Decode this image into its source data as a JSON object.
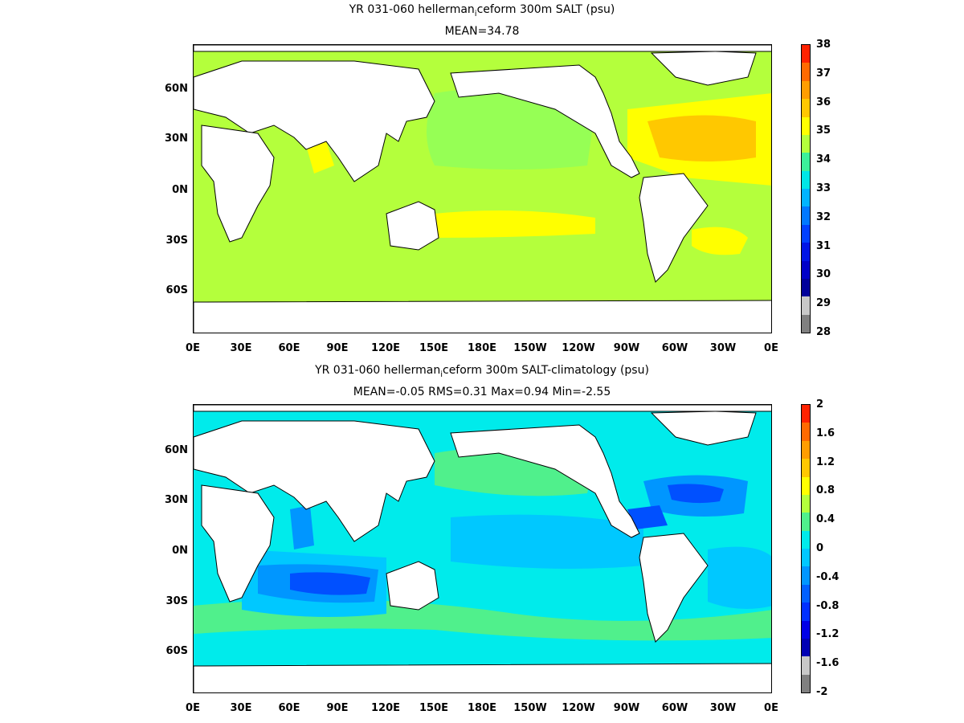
{
  "panels": [
    {
      "title": "YR 031-060 hellerman",
      "title_sub": "i",
      "title_rest": "ceform 300m SALT (psu)",
      "stats": "MEAN=34.78",
      "colorbar_labels": [
        "38",
        "37",
        "36",
        "35",
        "34",
        "33",
        "32",
        "31",
        "30",
        "29",
        "28"
      ],
      "colorbar_colors": [
        "#ff2200",
        "#ff6a00",
        "#ff9d00",
        "#ffc800",
        "#ffff00",
        "#b4ff3c",
        "#3cf09a",
        "#00e6e6",
        "#00b4ff",
        "#0078ff",
        "#0040ff",
        "#0014e6",
        "#0000c8",
        "#00009a",
        "#c8c8c8",
        "#808080"
      ],
      "map_colors": {
        "base": "#b4ff3c",
        "high": "#ffff00",
        "higher": "#ffc800",
        "lower": "#96ff55",
        "land": "#ffffff"
      }
    },
    {
      "title": "YR 031-060 hellerman",
      "title_sub": "i",
      "title_rest": "ceform 300m SALT-climatology (psu)",
      "stats": "MEAN=-0.05   RMS=0.31   Max=0.94   Min=-2.55",
      "colorbar_labels": [
        "2",
        "1.6",
        "1.2",
        "0.8",
        "0.4",
        "0",
        "-0.4",
        "-0.8",
        "-1.2",
        "-1.6",
        "-2"
      ],
      "colorbar_colors": [
        "#ff2200",
        "#ff6a00",
        "#ff9d00",
        "#ffc800",
        "#ffff00",
        "#b4ff3c",
        "#50f08c",
        "#00ebeb",
        "#00c8ff",
        "#0096ff",
        "#0060ff",
        "#0030ff",
        "#0000e6",
        "#0000b4",
        "#c8c8c8",
        "#808080"
      ],
      "map_colors": {
        "base": "#00ebeb",
        "green": "#50f08c",
        "lightblue": "#00c8ff",
        "blue": "#0096ff",
        "darkblue": "#0050ff",
        "land": "#ffffff"
      }
    }
  ],
  "x_ticks": [
    "0E",
    "30E",
    "60E",
    "90E",
    "120E",
    "150E",
    "180E",
    "150W",
    "120W",
    "90W",
    "60W",
    "30W",
    "0E"
  ],
  "y_ticks": [
    "60N",
    "30N",
    "0N",
    "30S",
    "60S"
  ]
}
